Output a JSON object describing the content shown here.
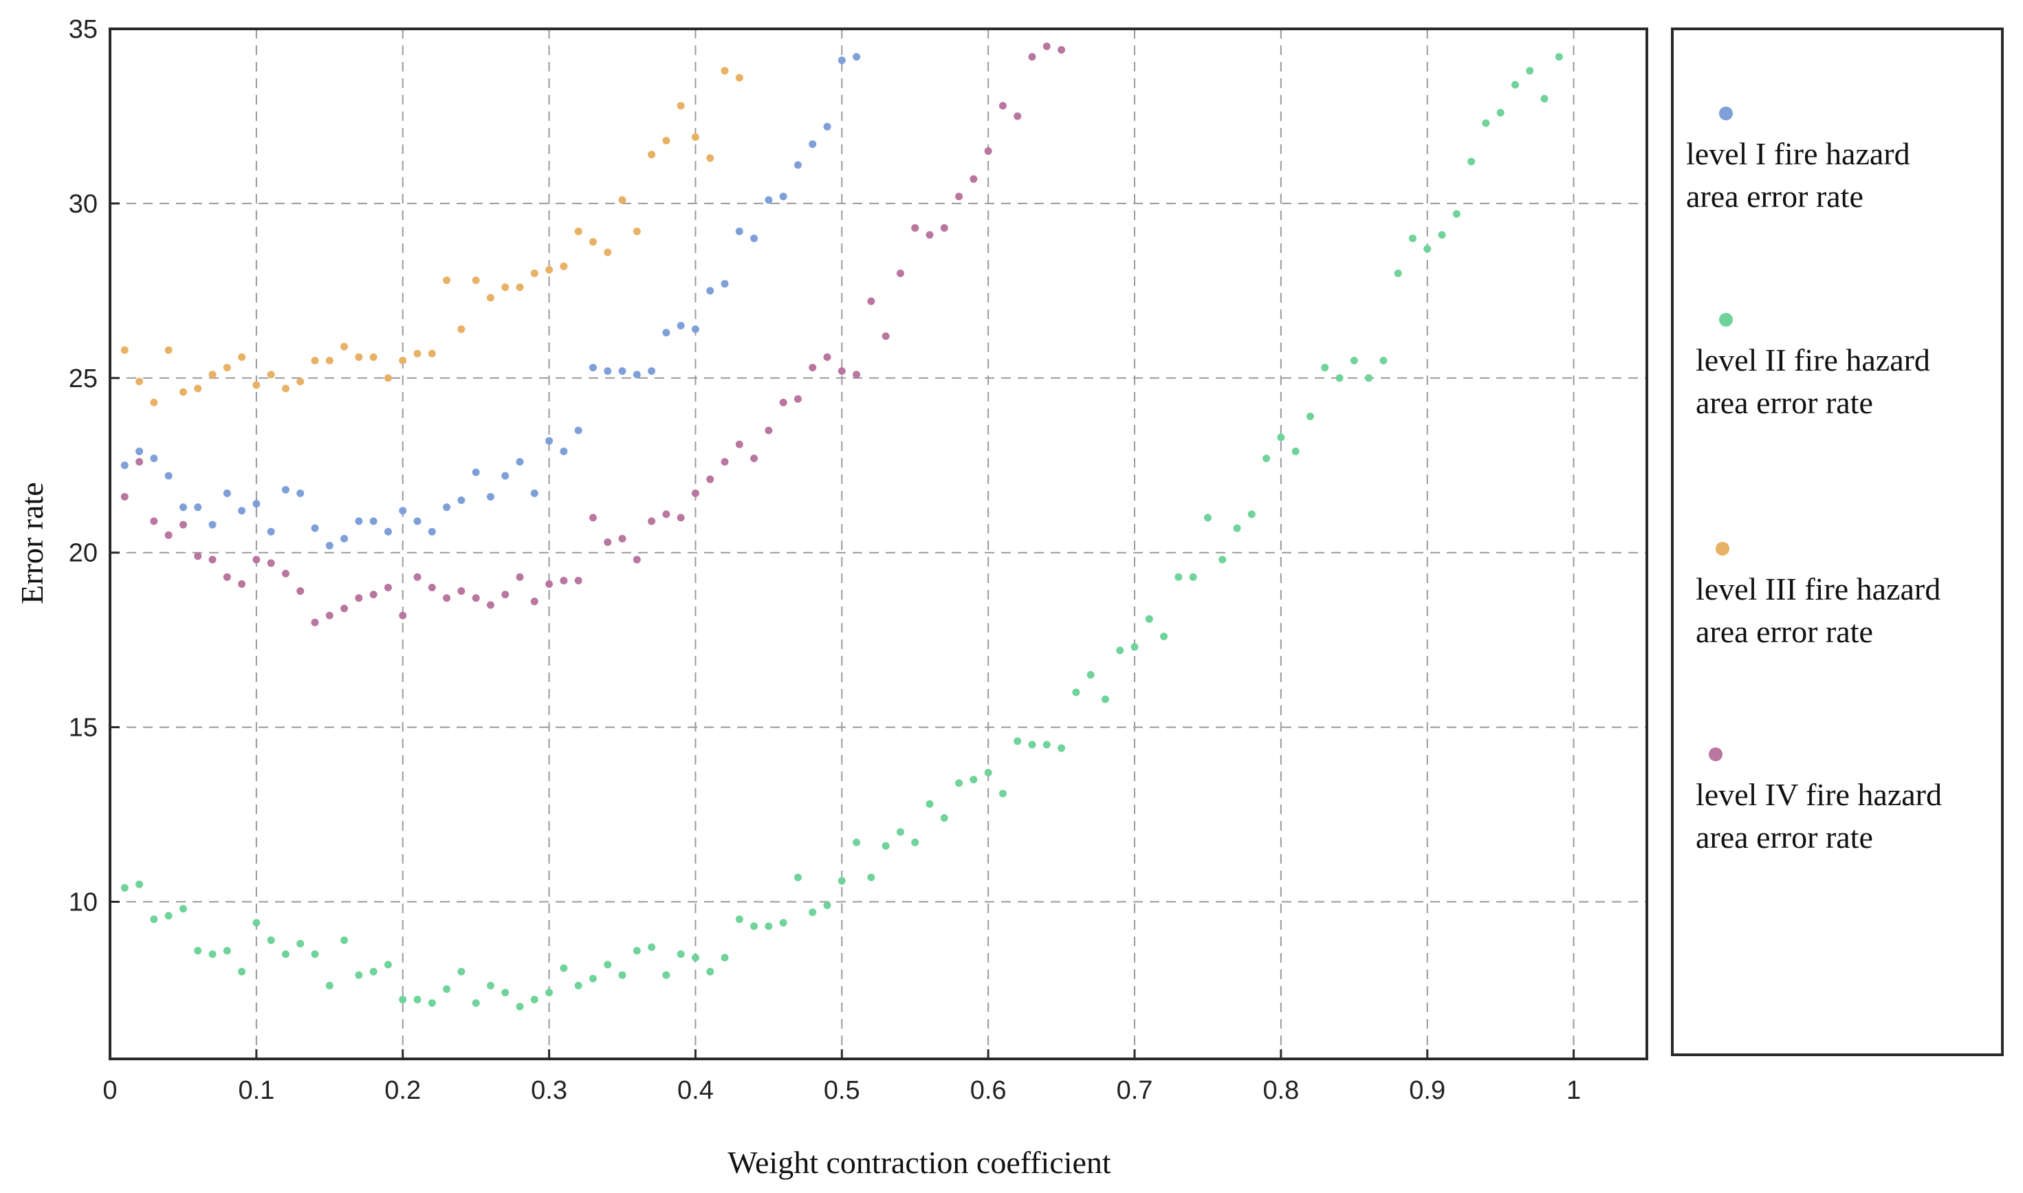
{
  "chart_data": {
    "type": "scatter",
    "xlabel": "Weight contraction coefficient",
    "ylabel": "Error rate",
    "xlim": [
      0,
      1.05
    ],
    "ylim": [
      5.5,
      35
    ],
    "x_ticks": [
      "0",
      "0.1",
      "0.2",
      "0.3",
      "0.4",
      "0.5",
      "0.6",
      "0.7",
      "0.8",
      "0.9",
      "1"
    ],
    "y_ticks": [
      "10",
      "15",
      "20",
      "25",
      "30",
      "35"
    ],
    "grid": true,
    "legend_position": "right, outside plot",
    "series": [
      {
        "name": "level I  fire hazard area error rate",
        "legend_lines": [
          "level I  fire hazard",
          "area error rate"
        ],
        "color": "#7f9fd9",
        "points": [
          [
            0.01,
            22.5
          ],
          [
            0.02,
            22.9
          ],
          [
            0.03,
            22.7
          ],
          [
            0.04,
            22.2
          ],
          [
            0.05,
            21.3
          ],
          [
            0.06,
            21.3
          ],
          [
            0.07,
            20.8
          ],
          [
            0.08,
            21.7
          ],
          [
            0.09,
            21.2
          ],
          [
            0.1,
            21.4
          ],
          [
            0.11,
            20.6
          ],
          [
            0.12,
            21.8
          ],
          [
            0.13,
            21.7
          ],
          [
            0.14,
            20.7
          ],
          [
            0.15,
            20.2
          ],
          [
            0.16,
            20.4
          ],
          [
            0.17,
            20.9
          ],
          [
            0.18,
            20.9
          ],
          [
            0.19,
            20.6
          ],
          [
            0.2,
            21.2
          ],
          [
            0.21,
            20.9
          ],
          [
            0.22,
            20.6
          ],
          [
            0.23,
            21.3
          ],
          [
            0.24,
            21.5
          ],
          [
            0.25,
            22.3
          ],
          [
            0.26,
            21.6
          ],
          [
            0.27,
            22.2
          ],
          [
            0.28,
            22.6
          ],
          [
            0.29,
            21.7
          ],
          [
            0.3,
            23.2
          ],
          [
            0.31,
            22.9
          ],
          [
            0.32,
            23.5
          ],
          [
            0.33,
            25.3
          ],
          [
            0.34,
            25.2
          ],
          [
            0.35,
            25.2
          ],
          [
            0.36,
            25.1
          ],
          [
            0.37,
            25.2
          ],
          [
            0.38,
            26.3
          ],
          [
            0.39,
            26.5
          ],
          [
            0.4,
            26.4
          ],
          [
            0.41,
            27.5
          ],
          [
            0.42,
            27.7
          ],
          [
            0.43,
            29.2
          ],
          [
            0.44,
            29.0
          ],
          [
            0.45,
            30.1
          ],
          [
            0.46,
            30.2
          ],
          [
            0.47,
            31.1
          ],
          [
            0.48,
            31.7
          ],
          [
            0.49,
            32.2
          ],
          [
            0.5,
            34.1
          ],
          [
            0.51,
            34.2
          ]
        ]
      },
      {
        "name": "level II fire hazard area error rate",
        "legend_lines": [
          "level II fire hazard",
          "area error rate"
        ],
        "color": "#6fd39a",
        "points": [
          [
            0.01,
            10.4
          ],
          [
            0.02,
            10.5
          ],
          [
            0.03,
            9.5
          ],
          [
            0.04,
            9.6
          ],
          [
            0.05,
            9.8
          ],
          [
            0.06,
            8.6
          ],
          [
            0.07,
            8.5
          ],
          [
            0.08,
            8.6
          ],
          [
            0.09,
            8.0
          ],
          [
            0.1,
            9.4
          ],
          [
            0.11,
            8.9
          ],
          [
            0.12,
            8.5
          ],
          [
            0.13,
            8.8
          ],
          [
            0.14,
            8.5
          ],
          [
            0.15,
            7.6
          ],
          [
            0.16,
            8.9
          ],
          [
            0.17,
            7.9
          ],
          [
            0.18,
            8.0
          ],
          [
            0.19,
            8.2
          ],
          [
            0.2,
            7.2
          ],
          [
            0.21,
            7.2
          ],
          [
            0.22,
            7.1
          ],
          [
            0.23,
            7.5
          ],
          [
            0.24,
            8.0
          ],
          [
            0.25,
            7.1
          ],
          [
            0.26,
            7.6
          ],
          [
            0.27,
            7.4
          ],
          [
            0.28,
            7.0
          ],
          [
            0.29,
            7.2
          ],
          [
            0.3,
            7.4
          ],
          [
            0.31,
            8.1
          ],
          [
            0.32,
            7.6
          ],
          [
            0.33,
            7.8
          ],
          [
            0.34,
            8.2
          ],
          [
            0.35,
            7.9
          ],
          [
            0.36,
            8.6
          ],
          [
            0.37,
            8.7
          ],
          [
            0.38,
            7.9
          ],
          [
            0.39,
            8.5
          ],
          [
            0.4,
            8.4
          ],
          [
            0.41,
            8.0
          ],
          [
            0.42,
            8.4
          ],
          [
            0.43,
            9.5
          ],
          [
            0.44,
            9.3
          ],
          [
            0.45,
            9.3
          ],
          [
            0.46,
            9.4
          ],
          [
            0.47,
            10.7
          ],
          [
            0.48,
            9.7
          ],
          [
            0.49,
            9.9
          ],
          [
            0.5,
            10.6
          ],
          [
            0.51,
            11.7
          ],
          [
            0.52,
            10.7
          ],
          [
            0.53,
            11.6
          ],
          [
            0.54,
            12.0
          ],
          [
            0.55,
            11.7
          ],
          [
            0.56,
            12.8
          ],
          [
            0.57,
            12.4
          ],
          [
            0.58,
            13.4
          ],
          [
            0.59,
            13.5
          ],
          [
            0.6,
            13.7
          ],
          [
            0.61,
            13.1
          ],
          [
            0.62,
            14.6
          ],
          [
            0.63,
            14.5
          ],
          [
            0.64,
            14.5
          ],
          [
            0.65,
            14.4
          ],
          [
            0.66,
            16.0
          ],
          [
            0.67,
            16.5
          ],
          [
            0.68,
            15.8
          ],
          [
            0.69,
            17.2
          ],
          [
            0.7,
            17.3
          ],
          [
            0.71,
            18.1
          ],
          [
            0.72,
            17.6
          ],
          [
            0.73,
            19.3
          ],
          [
            0.74,
            19.3
          ],
          [
            0.75,
            21.0
          ],
          [
            0.76,
            19.8
          ],
          [
            0.77,
            20.7
          ],
          [
            0.78,
            21.1
          ],
          [
            0.79,
            22.7
          ],
          [
            0.8,
            23.3
          ],
          [
            0.81,
            22.9
          ],
          [
            0.82,
            23.9
          ],
          [
            0.83,
            25.3
          ],
          [
            0.84,
            25.0
          ],
          [
            0.85,
            25.5
          ],
          [
            0.86,
            25.0
          ],
          [
            0.87,
            25.5
          ],
          [
            0.88,
            28.0
          ],
          [
            0.89,
            29.0
          ],
          [
            0.9,
            28.7
          ],
          [
            0.91,
            29.1
          ],
          [
            0.92,
            29.7
          ],
          [
            0.93,
            31.2
          ],
          [
            0.94,
            32.3
          ],
          [
            0.95,
            32.6
          ],
          [
            0.96,
            33.4
          ],
          [
            0.97,
            33.8
          ],
          [
            0.98,
            33.0
          ],
          [
            0.99,
            34.2
          ]
        ]
      },
      {
        "name": "level III fire hazard area error rate",
        "legend_lines": [
          "level III fire hazard",
          "area error rate"
        ],
        "color": "#e8b165",
        "points": [
          [
            0.01,
            25.8
          ],
          [
            0.02,
            24.9
          ],
          [
            0.03,
            24.3
          ],
          [
            0.04,
            25.8
          ],
          [
            0.05,
            24.6
          ],
          [
            0.06,
            24.7
          ],
          [
            0.07,
            25.1
          ],
          [
            0.08,
            25.3
          ],
          [
            0.09,
            25.6
          ],
          [
            0.1,
            24.8
          ],
          [
            0.11,
            25.1
          ],
          [
            0.12,
            24.7
          ],
          [
            0.13,
            24.9
          ],
          [
            0.14,
            25.5
          ],
          [
            0.15,
            25.5
          ],
          [
            0.16,
            25.9
          ],
          [
            0.17,
            25.6
          ],
          [
            0.18,
            25.6
          ],
          [
            0.19,
            25.0
          ],
          [
            0.2,
            25.5
          ],
          [
            0.21,
            25.7
          ],
          [
            0.22,
            25.7
          ],
          [
            0.23,
            27.8
          ],
          [
            0.24,
            26.4
          ],
          [
            0.25,
            27.8
          ],
          [
            0.26,
            27.3
          ],
          [
            0.27,
            27.6
          ],
          [
            0.28,
            27.6
          ],
          [
            0.29,
            28.0
          ],
          [
            0.3,
            28.1
          ],
          [
            0.31,
            28.2
          ],
          [
            0.32,
            29.2
          ],
          [
            0.33,
            28.9
          ],
          [
            0.34,
            28.6
          ],
          [
            0.35,
            30.1
          ],
          [
            0.36,
            29.2
          ],
          [
            0.37,
            31.4
          ],
          [
            0.38,
            31.8
          ],
          [
            0.39,
            32.8
          ],
          [
            0.4,
            31.9
          ],
          [
            0.41,
            31.3
          ],
          [
            0.42,
            33.8
          ],
          [
            0.43,
            33.6
          ]
        ]
      },
      {
        "name": "level IV fire hazard area error rate",
        "legend_lines": [
          "level IV fire hazard",
          "area error rate"
        ],
        "color": "#b9769f",
        "points": [
          [
            0.01,
            21.6
          ],
          [
            0.02,
            22.6
          ],
          [
            0.03,
            20.9
          ],
          [
            0.04,
            20.5
          ],
          [
            0.05,
            20.8
          ],
          [
            0.06,
            19.9
          ],
          [
            0.07,
            19.8
          ],
          [
            0.08,
            19.3
          ],
          [
            0.09,
            19.1
          ],
          [
            0.1,
            19.8
          ],
          [
            0.11,
            19.7
          ],
          [
            0.12,
            19.4
          ],
          [
            0.13,
            18.9
          ],
          [
            0.14,
            18.0
          ],
          [
            0.15,
            18.2
          ],
          [
            0.16,
            18.4
          ],
          [
            0.17,
            18.7
          ],
          [
            0.18,
            18.8
          ],
          [
            0.19,
            19.0
          ],
          [
            0.2,
            18.2
          ],
          [
            0.21,
            19.3
          ],
          [
            0.22,
            19.0
          ],
          [
            0.23,
            18.7
          ],
          [
            0.24,
            18.9
          ],
          [
            0.25,
            18.7
          ],
          [
            0.26,
            18.5
          ],
          [
            0.27,
            18.8
          ],
          [
            0.28,
            19.3
          ],
          [
            0.29,
            18.6
          ],
          [
            0.3,
            19.1
          ],
          [
            0.31,
            19.2
          ],
          [
            0.32,
            19.2
          ],
          [
            0.33,
            21.0
          ],
          [
            0.34,
            20.3
          ],
          [
            0.35,
            20.4
          ],
          [
            0.36,
            19.8
          ],
          [
            0.37,
            20.9
          ],
          [
            0.38,
            21.1
          ],
          [
            0.39,
            21.0
          ],
          [
            0.4,
            21.7
          ],
          [
            0.41,
            22.1
          ],
          [
            0.42,
            22.6
          ],
          [
            0.43,
            23.1
          ],
          [
            0.44,
            22.7
          ],
          [
            0.45,
            23.5
          ],
          [
            0.46,
            24.3
          ],
          [
            0.47,
            24.4
          ],
          [
            0.48,
            25.3
          ],
          [
            0.49,
            25.6
          ],
          [
            0.5,
            25.2
          ],
          [
            0.51,
            25.1
          ],
          [
            0.52,
            27.2
          ],
          [
            0.53,
            26.2
          ],
          [
            0.54,
            28.0
          ],
          [
            0.55,
            29.3
          ],
          [
            0.56,
            29.1
          ],
          [
            0.57,
            29.3
          ],
          [
            0.58,
            30.2
          ],
          [
            0.59,
            30.7
          ],
          [
            0.6,
            31.5
          ],
          [
            0.61,
            32.8
          ],
          [
            0.62,
            32.5
          ],
          [
            0.63,
            34.2
          ],
          [
            0.64,
            34.5
          ],
          [
            0.65,
            34.4
          ]
        ]
      }
    ]
  }
}
